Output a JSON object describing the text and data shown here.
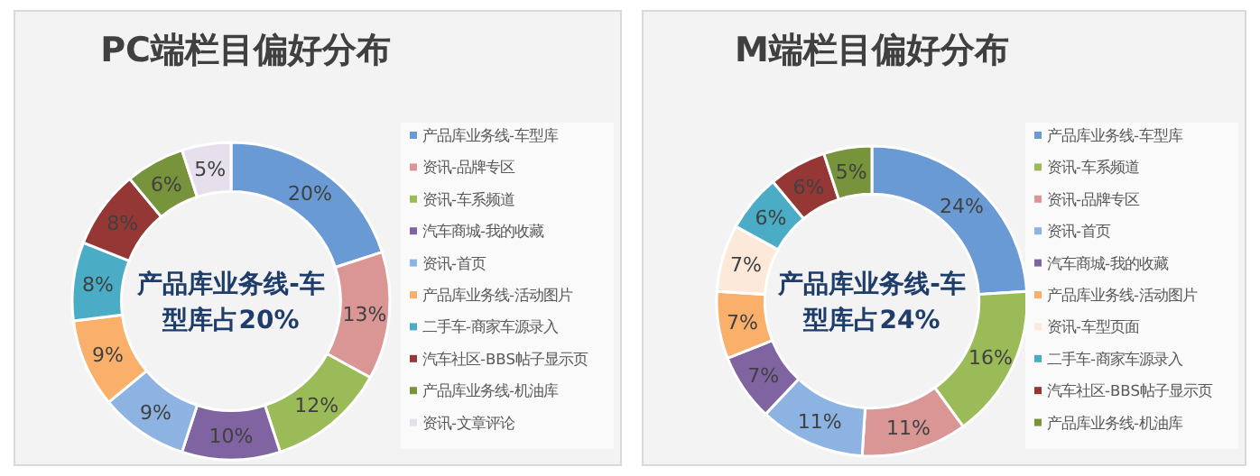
{
  "chart_data": [
    {
      "type": "donut",
      "title": "PC端栏目偏好分布",
      "legend": "right",
      "categories": [
        "产品库业务线-车型库",
        "资讯-品牌专区",
        "资讯-车系频道",
        "汽车商城-我的收藏",
        "资讯-首页",
        "产品库业务线-活动图片",
        "二手车-商家车源录入",
        "汽车社区-BBS帖子显示页",
        "产品库业务线-机油库",
        "资讯-文章评论"
      ],
      "values": [
        20,
        13,
        12,
        10,
        9,
        9,
        8,
        8,
        6,
        5
      ],
      "value_labels": [
        "20%",
        "13%",
        "12%",
        "10%",
        "9%",
        "9%",
        "8%",
        "8%",
        "6%",
        "5%"
      ],
      "colors": [
        "#6a9ad4",
        "#d99694",
        "#9bbb59",
        "#8064a2",
        "#8db3e2",
        "#fab06a",
        "#4bacc6",
        "#953735",
        "#77933c",
        "#e6e0ec"
      ],
      "annotations": [
        "产品库业务线-车型库占20%"
      ]
    },
    {
      "type": "donut",
      "title": "M端栏目偏好分布",
      "legend": "right",
      "categories": [
        "产品库业务线-车型库",
        "资讯-车系频道",
        "资讯-品牌专区",
        "资讯-首页",
        "汽车商城-我的收藏",
        "产品库业务线-活动图片",
        "资讯-车型页面",
        "二手车-商家车源录入",
        "汽车社区-BBS帖子显示页",
        "产品库业务线-机油库"
      ],
      "values": [
        24,
        16,
        11,
        11,
        7,
        7,
        7,
        6,
        6,
        5
      ],
      "value_labels": [
        "24%",
        "16%",
        "11%",
        "11%",
        "7%",
        "7%",
        "7%",
        "6%",
        "6%",
        "5%"
      ],
      "colors": [
        "#6a9ad4",
        "#9bbb59",
        "#d99694",
        "#8db3e2",
        "#8064a2",
        "#fab06a",
        "#fde9d9",
        "#4bacc6",
        "#953735",
        "#77933c"
      ],
      "annotations": [
        "产品库业务线-车型库占24%"
      ]
    }
  ]
}
